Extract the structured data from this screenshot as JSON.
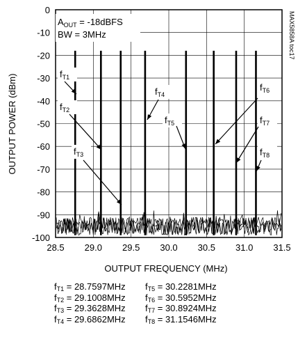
{
  "chart_data": {
    "type": "line",
    "xlabel": "OUTPUT FREQUENCY (MHz)",
    "ylabel": "OUTPUT POWER (dBm)",
    "xlim": [
      28.5,
      31.5
    ],
    "ylim": [
      -100,
      0
    ],
    "x_ticks": [
      "28.5",
      "29.0",
      "29.5",
      "30.0",
      "30.5",
      "31.0",
      "31.5"
    ],
    "y_ticks": [
      "0",
      "-10",
      "-20",
      "-30",
      "-40",
      "-50",
      "-60",
      "-70",
      "-80",
      "-90",
      "-100"
    ],
    "grid": true,
    "conditions": {
      "line1_main": "A",
      "line1_sub": "OUT",
      "line1_rest": " = -18dBFS",
      "line2": "BW = 3MHz"
    },
    "version_label": "MAX5858A toc17",
    "noise_floor_dbm": -95,
    "tones": [
      {
        "label": "f",
        "sub": "T1",
        "freq_mhz": 28.7597,
        "power_dbm": -18
      },
      {
        "label": "f",
        "sub": "T2",
        "freq_mhz": 29.1008,
        "power_dbm": -18
      },
      {
        "label": "f",
        "sub": "T3",
        "freq_mhz": 29.3628,
        "power_dbm": -18
      },
      {
        "label": "f",
        "sub": "T4",
        "freq_mhz": 29.6862,
        "power_dbm": -18
      },
      {
        "label": "f",
        "sub": "T5",
        "freq_mhz": 30.2281,
        "power_dbm": -18
      },
      {
        "label": "f",
        "sub": "T6",
        "freq_mhz": 30.5952,
        "power_dbm": -18
      },
      {
        "label": "f",
        "sub": "T7",
        "freq_mhz": 30.8924,
        "power_dbm": -18
      },
      {
        "label": "f",
        "sub": "T8",
        "freq_mhz": 31.1546,
        "power_dbm": -18
      }
    ],
    "freq_table": [
      {
        "main": "f",
        "sub": "T1",
        "rest": " = 28.7597MHz"
      },
      {
        "main": "f",
        "sub": "T5",
        "rest": " = 30.2281MHz"
      },
      {
        "main": "f",
        "sub": "T2",
        "rest": " = 29.1008MHz"
      },
      {
        "main": "f",
        "sub": "T6",
        "rest": " = 30.5952MHz"
      },
      {
        "main": "f",
        "sub": "T3",
        "rest": " = 29.3628MHz"
      },
      {
        "main": "f",
        "sub": "T7",
        "rest": " = 30.8924MHz"
      },
      {
        "main": "f",
        "sub": "T4",
        "rest": " = 29.6862MHz"
      },
      {
        "main": "f",
        "sub": "T8",
        "rest": " = 31.1546MHz"
      }
    ]
  }
}
